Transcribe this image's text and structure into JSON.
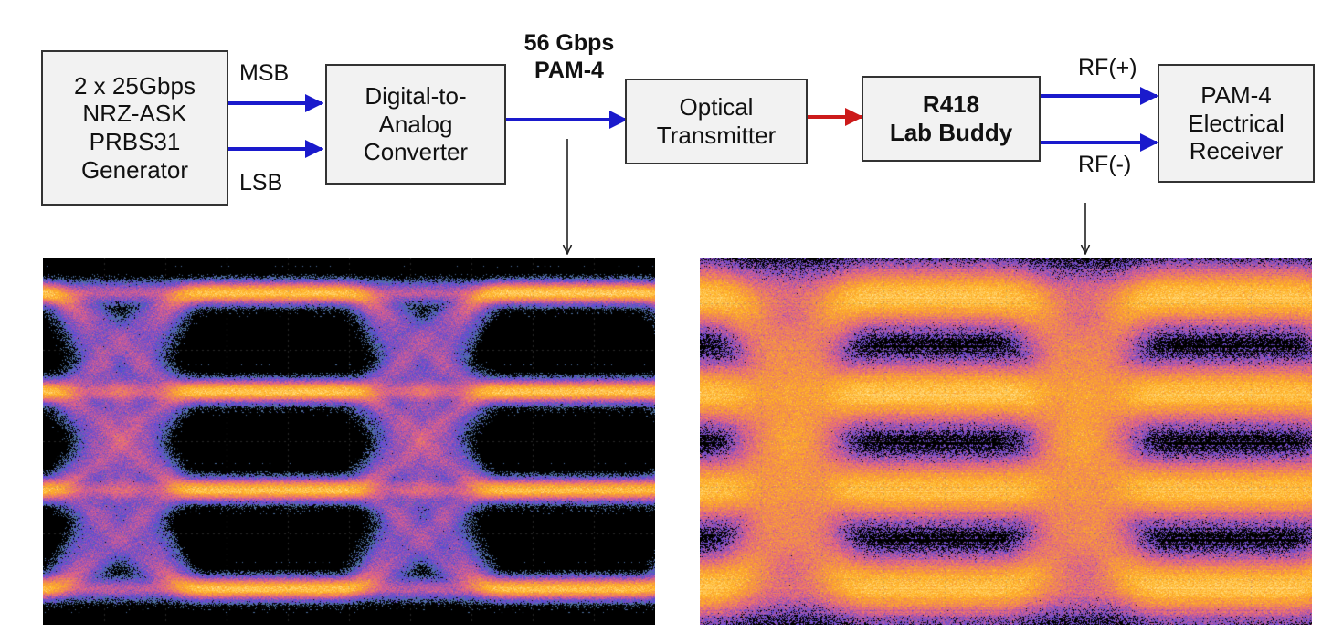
{
  "blocks": {
    "generator": [
      "2 x 25Gbps",
      "NRZ-ASK",
      "PRBS31",
      "Generator"
    ],
    "dac": [
      "Digital-to-",
      "Analog",
      "Converter"
    ],
    "optical_tx": [
      "Optical",
      "Transmitter"
    ],
    "lab_buddy": [
      "R418",
      "Lab Buddy"
    ],
    "receiver": [
      "PAM-4",
      "Electrical",
      "Receiver"
    ]
  },
  "signals": {
    "msb": "MSB",
    "lsb": "LSB",
    "rate_line1": "56 Gbps",
    "rate_line2": "PAM-4",
    "rf_plus": "RF(+)",
    "rf_minus": "RF(-)"
  },
  "colors": {
    "electrical_link": "#1a1acc",
    "optical_link": "#cc1a1a",
    "eye_background": "#000000",
    "eye_trace_hot": "#fff7c0",
    "eye_trace_warm": "#ffb020",
    "eye_trace_mid": "#e0608a",
    "eye_trace_cool": "#5a4ad8",
    "eye_trace_edge": "#3fae4a"
  },
  "eye_diagrams": [
    {
      "name": "eye-diagram-transmitter",
      "levels": 4,
      "eyes_per_ui": 3
    },
    {
      "name": "eye-diagram-lab-buddy",
      "levels": 4,
      "eyes_per_ui": 3
    }
  ]
}
